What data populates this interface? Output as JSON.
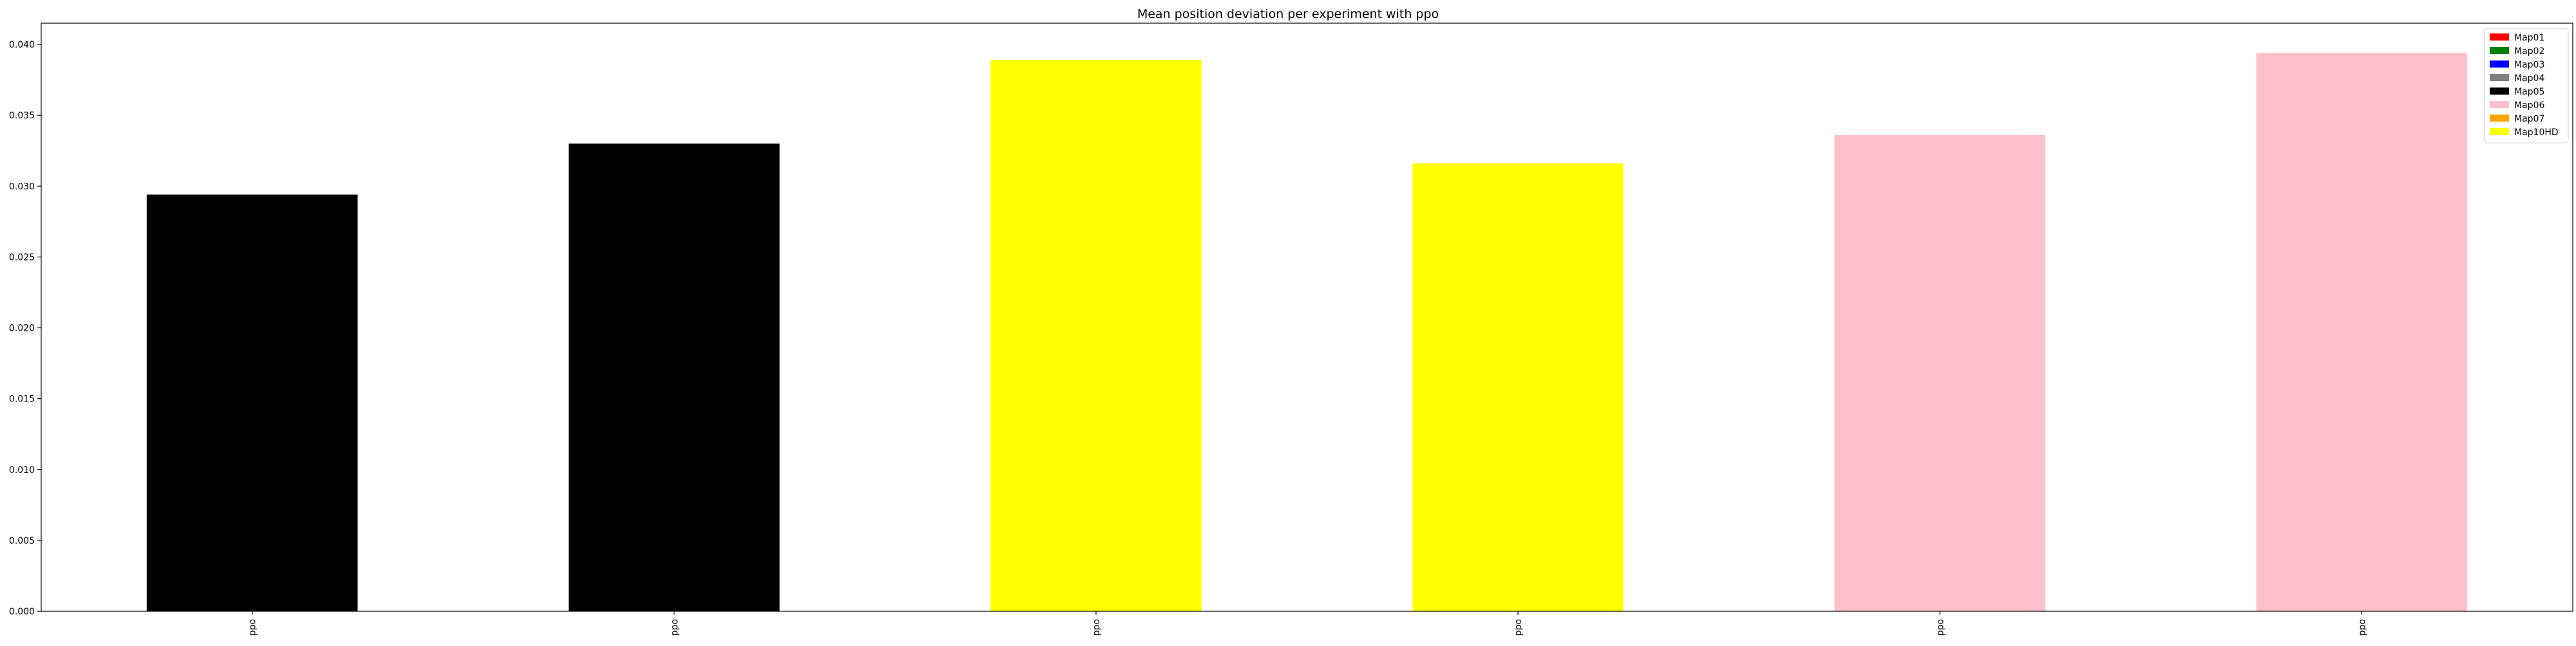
{
  "chart_data": {
    "type": "bar",
    "title": "Mean position deviation per experiment with ppo",
    "xlabel": "",
    "ylabel": "",
    "categories": [
      "ppo",
      "ppo",
      "ppo",
      "ppo",
      "ppo",
      "ppo"
    ],
    "values": [
      0.0294,
      0.033,
      0.0389,
      0.0316,
      0.0336,
      0.0394
    ],
    "bar_maps": [
      "Map05",
      "Map05",
      "Map10HD",
      "Map10HD",
      "Map06",
      "Map06"
    ],
    "ylim": [
      0,
      0.0415
    ],
    "yticks": [
      0.0,
      0.005,
      0.01,
      0.015,
      0.02,
      0.025,
      0.03,
      0.035,
      0.04
    ],
    "ytick_labels": [
      "0.000",
      "0.005",
      "0.010",
      "0.015",
      "0.020",
      "0.025",
      "0.030",
      "0.035",
      "0.040"
    ],
    "grid": false,
    "legend_position": "top-right",
    "legend": [
      {
        "label": "Map01",
        "color": "#ff0000"
      },
      {
        "label": "Map02",
        "color": "#008000"
      },
      {
        "label": "Map03",
        "color": "#0000ff"
      },
      {
        "label": "Map04",
        "color": "#808080"
      },
      {
        "label": "Map05",
        "color": "#000000"
      },
      {
        "label": "Map06",
        "color": "#ffc0cb"
      },
      {
        "label": "Map07",
        "color": "#ffa500"
      },
      {
        "label": "Map10HD",
        "color": "#ffff00"
      }
    ]
  }
}
